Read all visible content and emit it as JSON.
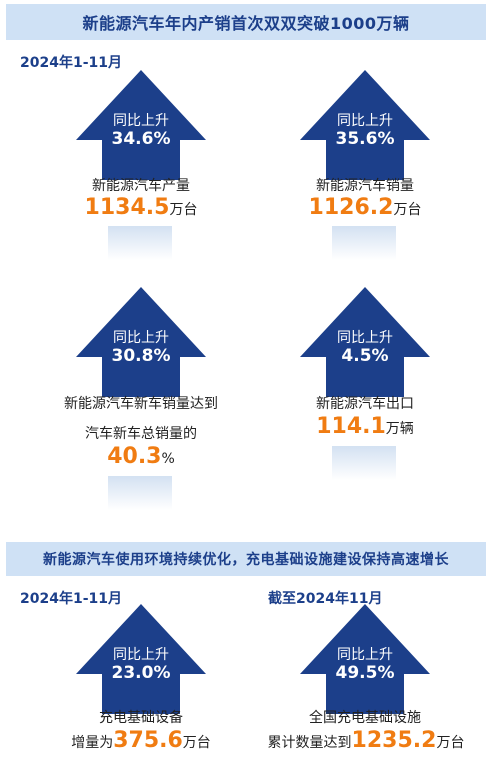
{
  "banner1": "新能源汽车年内产销首次双双突破1000万辆",
  "period1": "2024年1-11月",
  "arrow_caption": "同比上升",
  "section1": [
    {
      "pct": "34.6%",
      "label": "新能源汽车产量",
      "number": "1134.5",
      "unit": "万台"
    },
    {
      "pct": "35.6%",
      "label": "新能源汽车销量",
      "number": "1126.2",
      "unit": "万台"
    },
    {
      "pct": "30.8%",
      "label": "新能源汽车新车销量达到",
      "label2": "汽车新车总销量的",
      "number": "40.3",
      "unit": "%"
    },
    {
      "pct": "4.5%",
      "label": "新能源汽车出口",
      "number": "114.1",
      "unit": "万辆"
    }
  ],
  "banner2": "新能源汽车使用环境持续优化，充电基础设施建设保持高速增长",
  "period2_left": "2024年1-11月",
  "period2_right": "截至2024年11月",
  "section2": [
    {
      "pct": "23.0%",
      "label": "充电基础设备",
      "prefix": "增量为",
      "number": "375.6",
      "unit": "万台"
    },
    {
      "pct": "49.5%",
      "label": "全国充电基础设施",
      "prefix": "累计数量达到",
      "number": "1235.2",
      "unit": "万台"
    }
  ],
  "colors": {
    "arrow": "#1c3f8a",
    "banner_bg": "#cfe1f5",
    "highlight": "#f07c12"
  }
}
